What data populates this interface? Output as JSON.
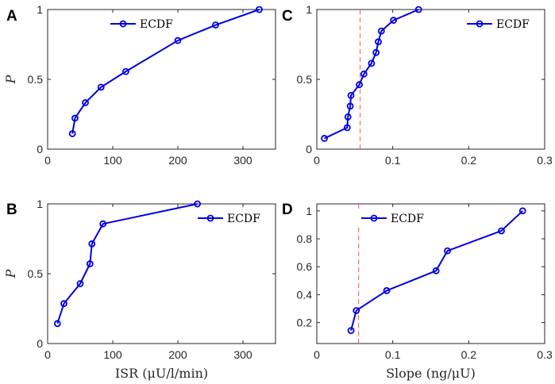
{
  "colors": {
    "series": "#0000e6",
    "ref_line": "#ff6b6b",
    "axis": "#262626"
  },
  "chart_data": [
    {
      "panel": "A",
      "type": "line",
      "title": "",
      "xlabel": "",
      "ylabel": "P",
      "xlim": [
        0,
        350
      ],
      "ylim": [
        0,
        1
      ],
      "xticks": [
        0,
        100,
        200,
        300
      ],
      "yticks": [
        0,
        0.5,
        1
      ],
      "xtick_labels": [
        "0",
        "100",
        "200",
        "300"
      ],
      "ytick_labels": [
        "0",
        "0.5",
        "1"
      ],
      "legend": {
        "label": "ECDF",
        "position": "top-center"
      },
      "series": [
        {
          "name": "ECDF",
          "x": [
            38,
            42,
            58,
            82,
            120,
            200,
            258,
            325
          ],
          "y": [
            0.111,
            0.222,
            0.333,
            0.444,
            0.556,
            0.778,
            0.889,
            1.0
          ]
        }
      ]
    },
    {
      "panel": "B",
      "type": "line",
      "title": "",
      "xlabel": "ISR (μU/l/min)",
      "ylabel": "P",
      "xlim": [
        0,
        350
      ],
      "ylim": [
        0,
        1
      ],
      "xticks": [
        0,
        100,
        200,
        300
      ],
      "yticks": [
        0,
        0.5,
        1
      ],
      "xtick_labels": [
        "0",
        "100",
        "200",
        "300"
      ],
      "ytick_labels": [
        "0",
        "0.5",
        "1"
      ],
      "legend": {
        "label": "ECDF",
        "position": "top-right"
      },
      "series": [
        {
          "name": "ECDF",
          "x": [
            15,
            25,
            50,
            65,
            68,
            85,
            230
          ],
          "y": [
            0.143,
            0.286,
            0.429,
            0.571,
            0.714,
            0.857,
            1.0
          ]
        }
      ]
    },
    {
      "panel": "C",
      "type": "line",
      "title": "",
      "xlabel": "",
      "ylabel": "",
      "xlim": [
        0,
        0.3
      ],
      "ylim": [
        0,
        1
      ],
      "xticks": [
        0,
        0.1,
        0.2,
        0.3
      ],
      "yticks": [
        0,
        0.5,
        1
      ],
      "xtick_labels": [
        "0",
        "0.1",
        "0.2",
        "0.3"
      ],
      "ytick_labels": [
        "0",
        "0.5",
        "1"
      ],
      "reference_line_x": 0.057,
      "legend": {
        "label": "ECDF",
        "position": "top-right"
      },
      "series": [
        {
          "name": "ECDF",
          "x": [
            0.01,
            0.04,
            0.041,
            0.044,
            0.045,
            0.056,
            0.062,
            0.072,
            0.078,
            0.081,
            0.085,
            0.101,
            0.134
          ],
          "y": [
            0.077,
            0.154,
            0.231,
            0.308,
            0.385,
            0.462,
            0.538,
            0.615,
            0.692,
            0.769,
            0.846,
            0.923,
            1.0
          ]
        }
      ]
    },
    {
      "panel": "D",
      "type": "line",
      "title": "",
      "xlabel": "Slope (ng/μU)",
      "ylabel": "",
      "xlim": [
        0,
        0.3
      ],
      "ylim": [
        0.05,
        1.05
      ],
      "xticks": [
        0,
        0.1,
        0.2,
        0.3
      ],
      "yticks": [
        0.2,
        0.4,
        0.6,
        0.8,
        1
      ],
      "xtick_labels": [
        "0",
        "0.1",
        "0.2",
        "0.3"
      ],
      "ytick_labels": [
        "0.2",
        "0.4",
        "0.6",
        "0.8",
        "1"
      ],
      "reference_line_x": 0.055,
      "legend": {
        "label": "ECDF",
        "position": "top-left"
      },
      "series": [
        {
          "name": "ECDF",
          "x": [
            0.045,
            0.052,
            0.092,
            0.157,
            0.172,
            0.243,
            0.271
          ],
          "y": [
            0.143,
            0.286,
            0.429,
            0.571,
            0.714,
            0.857,
            1.0
          ]
        }
      ]
    }
  ]
}
